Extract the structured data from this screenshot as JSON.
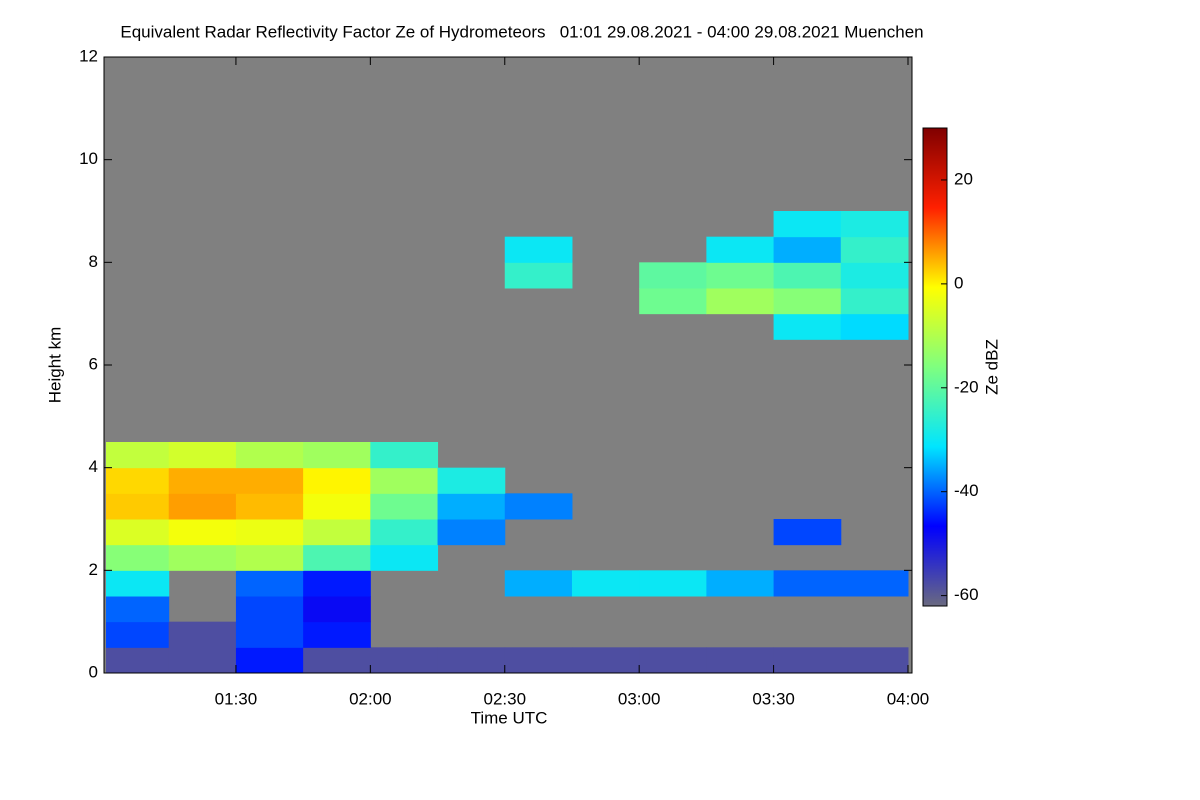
{
  "chart_data": {
    "type": "heatmap",
    "title": "Equivalent Radar Reflectivity Factor Ze of Hydrometeors   01:01 29.08.2021 - 04:00 29.08.2021 Muenchen",
    "xlabel": "Time UTC",
    "ylabel": "Height km",
    "colorbar_label": "Ze dBZ",
    "xlim": [
      61,
      240
    ],
    "xticks": [
      {
        "value": 90,
        "label": "01:30"
      },
      {
        "value": 120,
        "label": "02:00"
      },
      {
        "value": 150,
        "label": "02:30"
      },
      {
        "value": 180,
        "label": "03:00"
      },
      {
        "value": 210,
        "label": "03:30"
      },
      {
        "value": 240,
        "label": "04:00"
      }
    ],
    "ylim": [
      0,
      12
    ],
    "yticks": [
      0,
      2,
      4,
      6,
      8,
      10,
      12
    ],
    "zlim": [
      -62,
      30
    ],
    "zticks": [
      -60,
      -40,
      -20,
      0,
      20
    ],
    "colormap": [
      "#6a6a80",
      "#0000ff",
      "#00e5ff",
      "#7fff7f",
      "#ffff00",
      "#ff2000",
      "#800000"
    ],
    "missing_color": "#808080",
    "xbins": [
      61,
      75,
      90,
      105,
      120,
      135,
      150,
      165,
      180,
      195,
      210,
      225,
      240
    ],
    "ybins": [
      0,
      0.5,
      1,
      1.5,
      2,
      2.5,
      3,
      3.5,
      4,
      4.5,
      5,
      5.5,
      6,
      6.5,
      7,
      7.5,
      8,
      8.5,
      9
    ],
    "z": [
      [
        -58,
        -58,
        -45,
        -58,
        -58,
        -58,
        -58,
        -58,
        -58,
        -58,
        -58,
        -58
      ],
      [
        -42,
        -58,
        -42,
        -45,
        null,
        null,
        null,
        null,
        null,
        null,
        null,
        null
      ],
      [
        -40,
        null,
        -42,
        -48,
        null,
        null,
        null,
        null,
        null,
        null,
        null,
        null
      ],
      [
        -30,
        null,
        -40,
        -45,
        null,
        null,
        -35,
        -30,
        -30,
        -35,
        -40,
        -40
      ],
      [
        -15,
        -12,
        -10,
        -22,
        -30,
        null,
        null,
        null,
        null,
        null,
        null,
        null
      ],
      [
        -5,
        -2,
        -3,
        -8,
        -25,
        -38,
        null,
        null,
        null,
        null,
        -42,
        null
      ],
      [
        3,
        6,
        4,
        -2,
        -18,
        -35,
        -38,
        null,
        null,
        null,
        null,
        null
      ],
      [
        2,
        5,
        5,
        0,
        -12,
        -28,
        null,
        null,
        null,
        null,
        null,
        null
      ],
      [
        -8,
        -6,
        -10,
        -12,
        -25,
        null,
        null,
        null,
        null,
        null,
        null,
        null
      ],
      [
        null,
        null,
        null,
        null,
        null,
        null,
        null,
        null,
        null,
        null,
        null,
        null
      ],
      [
        null,
        null,
        null,
        null,
        null,
        null,
        null,
        null,
        null,
        null,
        null,
        null
      ],
      [
        null,
        null,
        null,
        null,
        null,
        null,
        null,
        null,
        null,
        null,
        null,
        null
      ],
      [
        null,
        null,
        null,
        null,
        null,
        null,
        null,
        null,
        null,
        null,
        null,
        null
      ],
      [
        null,
        null,
        null,
        null,
        null,
        null,
        null,
        null,
        null,
        null,
        -30,
        -32
      ],
      [
        null,
        null,
        null,
        null,
        null,
        null,
        null,
        null,
        -18,
        -12,
        -15,
        -25
      ],
      [
        null,
        null,
        null,
        null,
        null,
        null,
        -25,
        null,
        -20,
        -18,
        -22,
        -28
      ],
      [
        null,
        null,
        null,
        null,
        null,
        null,
        -30,
        null,
        null,
        -30,
        -35,
        -25
      ],
      [
        null,
        null,
        null,
        null,
        null,
        null,
        null,
        null,
        null,
        null,
        -30,
        -28
      ]
    ]
  }
}
